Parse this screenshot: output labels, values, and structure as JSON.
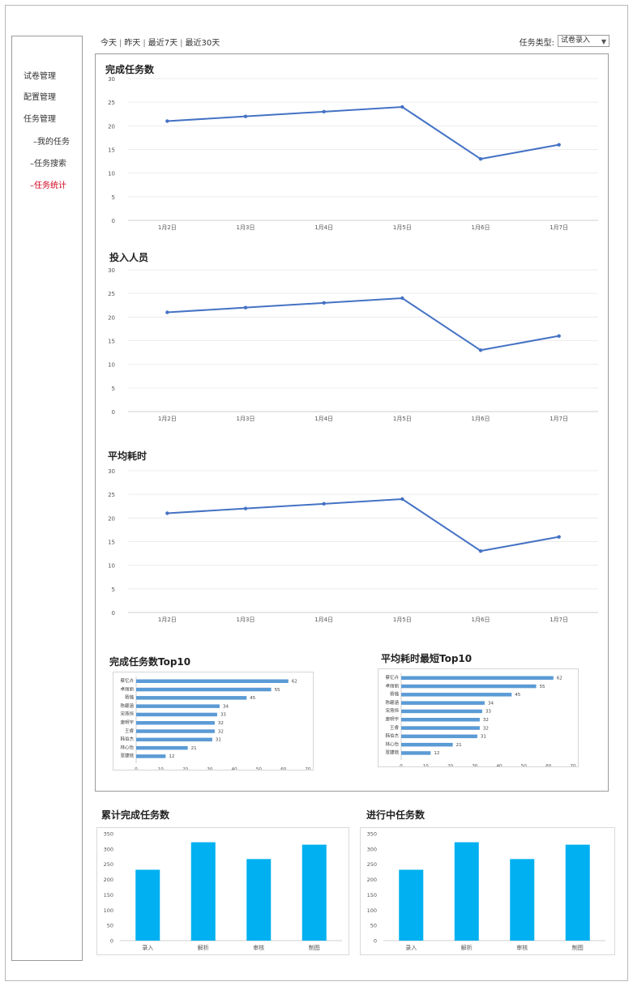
{
  "sidebar": {
    "items": [
      {
        "label": "试卷管理",
        "active": false
      },
      {
        "label": "配置管理",
        "active": false
      },
      {
        "label": "任务管理",
        "active": false
      },
      {
        "label": "–我的任务",
        "active": false
      },
      {
        "label": "–任务搜索",
        "active": false
      },
      {
        "label": "–任务统计",
        "active": true
      }
    ]
  },
  "topbar": {
    "ranges": [
      "今天",
      "昨天",
      "最近7天",
      "最近30天"
    ],
    "separator": "|",
    "type_label": "任务类型:",
    "type_value": "试卷录入",
    "type_arrow": "▼"
  },
  "line_titles": [
    "完成任务数",
    "投入人员",
    "平均耗时"
  ],
  "bar_titles": [
    "完成任务数Top10",
    "平均耗时最短Top10"
  ],
  "col_titles": [
    "累计完成任务数",
    "进行中任务数"
  ],
  "colors": {
    "line": "#4472c4",
    "hbar": "#5b9bd5",
    "col": "#00b0f0",
    "active": "#d0021b"
  },
  "chart_data": [
    {
      "type": "line",
      "title": "完成任务数",
      "categories": [
        "1月2日",
        "1月3日",
        "1月4日",
        "1月5日",
        "1月6日",
        "1月7日"
      ],
      "values": [
        21,
        22,
        23,
        24,
        13,
        16
      ],
      "ylim": [
        0,
        30
      ],
      "yticks": [
        0,
        5,
        10,
        15,
        20,
        25,
        30
      ]
    },
    {
      "type": "line",
      "title": "投入人员",
      "categories": [
        "1月2日",
        "1月3日",
        "1月4日",
        "1月5日",
        "1月6日",
        "1月7日"
      ],
      "values": [
        21,
        22,
        23,
        24,
        13,
        16
      ],
      "ylim": [
        0,
        30
      ],
      "yticks": [
        0,
        5,
        10,
        15,
        20,
        25,
        30
      ]
    },
    {
      "type": "line",
      "title": "平均耗时",
      "categories": [
        "1月2日",
        "1月3日",
        "1月4日",
        "1月5日",
        "1月6日",
        "1月7日"
      ],
      "values": [
        21,
        22,
        23,
        24,
        13,
        16
      ],
      "ylim": [
        0,
        30
      ],
      "yticks": [
        0,
        5,
        10,
        15,
        20,
        25,
        30
      ]
    },
    {
      "type": "bar",
      "orientation": "horizontal",
      "title": "完成任务数Top10",
      "categories": [
        "蔡忆卉",
        "卓丽丽",
        "杨璐",
        "陈翩涵",
        "宋燕恒",
        "康明宇",
        "王睿",
        "韩伯杰",
        "林心怡",
        "覃婕瑶"
      ],
      "values": [
        62,
        55,
        45,
        34,
        33,
        32,
        32,
        31,
        21,
        12
      ],
      "xlim": [
        0,
        70
      ],
      "xticks": [
        0,
        10,
        20,
        30,
        40,
        50,
        60,
        70
      ]
    },
    {
      "type": "bar",
      "orientation": "horizontal",
      "title": "平均耗时最短Top10",
      "categories": [
        "蔡忆卉",
        "卓丽丽",
        "杨璐",
        "陈翩涵",
        "宋燕恒",
        "康明宇",
        "王睿",
        "韩伯杰",
        "林心怡",
        "覃婕瑶"
      ],
      "values": [
        62,
        55,
        45,
        34,
        33,
        32,
        32,
        31,
        21,
        12
      ],
      "xlim": [
        0,
        70
      ],
      "xticks": [
        0,
        10,
        20,
        30,
        40,
        50,
        60,
        70
      ]
    },
    {
      "type": "bar",
      "title": "累计完成任务数",
      "categories": [
        "录入",
        "解析",
        "审核",
        "制图"
      ],
      "values": [
        232,
        322,
        267,
        314
      ],
      "ylim": [
        0,
        350
      ],
      "yticks": [
        0,
        50,
        100,
        150,
        200,
        250,
        300,
        350
      ]
    },
    {
      "type": "bar",
      "title": "进行中任务数",
      "categories": [
        "录入",
        "解析",
        "审核",
        "制图"
      ],
      "values": [
        232,
        322,
        267,
        314
      ],
      "ylim": [
        0,
        350
      ],
      "yticks": [
        0,
        50,
        100,
        150,
        200,
        250,
        300,
        350
      ]
    }
  ]
}
